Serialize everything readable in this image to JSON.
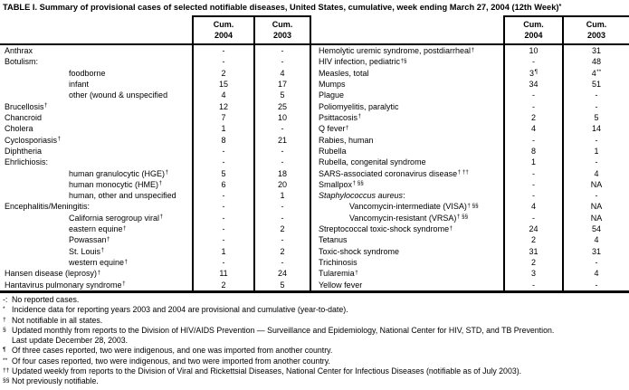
{
  "title": {
    "text": "TABLE I. Summary of provisional cases of selected notifiable diseases, United States, cumulative, week ending March 27, 2004 (12th Week)",
    "marker": "*"
  },
  "header": {
    "cum": "Cum.",
    "year_2004": "2004",
    "year_2003": "2003"
  },
  "left_rows": [
    {
      "label": "Anthrax",
      "v04": "-",
      "v03": "-"
    },
    {
      "label": "Botulism:",
      "v04": "-",
      "v03": "-"
    },
    {
      "label": "foodborne",
      "indent": 1,
      "v04": "2",
      "v03": "4"
    },
    {
      "label": "infant",
      "indent": 1,
      "v04": "15",
      "v03": "17"
    },
    {
      "label": "other (wound & unspecified",
      "indent": 1,
      "v04": "4",
      "v03": "5"
    },
    {
      "label": "Brucellosis",
      "marker": "†",
      "v04": "12",
      "v03": "25"
    },
    {
      "label": "Chancroid",
      "v04": "7",
      "v03": "10"
    },
    {
      "label": "Cholera",
      "v04": "1",
      "v03": "-"
    },
    {
      "label": "Cyclosporiasis",
      "marker": "†",
      "v04": "8",
      "v03": "21"
    },
    {
      "label": "Diphtheria",
      "v04": "-",
      "v03": "-"
    },
    {
      "label": "Ehrlichiosis:",
      "v04": "-",
      "v03": "-"
    },
    {
      "label": "human granulocytic (HGE)",
      "marker": "†",
      "indent": 1,
      "v04": "5",
      "v03": "18"
    },
    {
      "label": "human monocytic (HME)",
      "marker": "†",
      "indent": 1,
      "v04": "6",
      "v03": "20"
    },
    {
      "label": "human, other and unspecified",
      "indent": 1,
      "v04": "-",
      "v03": "1"
    },
    {
      "label": "Encephalitis/Meningitis:",
      "v04": "-",
      "v03": "-"
    },
    {
      "label": "California serogroup viral",
      "marker": "†",
      "indent": 1,
      "v04": "-",
      "v03": "-"
    },
    {
      "label": "eastern equine",
      "marker": "†",
      "indent": 1,
      "v04": "-",
      "v03": "2"
    },
    {
      "label": "Powassan",
      "marker": "†",
      "indent": 1,
      "v04": "-",
      "v03": "-"
    },
    {
      "label": "St. Louis",
      "marker": "†",
      "indent": 1,
      "v04": "1",
      "v03": "2"
    },
    {
      "label": "western equine",
      "marker": "†",
      "indent": 1,
      "v04": "-",
      "v03": "-"
    },
    {
      "label": "Hansen disease (leprosy)",
      "marker": "†",
      "v04": "11",
      "v03": "24"
    },
    {
      "label": "Hantavirus pulmonary syndrome",
      "marker": "†",
      "v04": "2",
      "v03": "5"
    }
  ],
  "right_rows": [
    {
      "label": "Hemolytic uremic syndrome, postdiarrheal",
      "marker": "†",
      "v04": "10",
      "v03": "31"
    },
    {
      "label": "HIV infection, pediatric",
      "marker": "†§",
      "v04": "-",
      "v03": "48"
    },
    {
      "label": "Measles, total",
      "v04": "3",
      "m04": "¶",
      "v03": "4",
      "m03": "**"
    },
    {
      "label": "Mumps",
      "v04": "34",
      "v03": "51"
    },
    {
      "label": "Plague",
      "v04": "-",
      "v03": "-"
    },
    {
      "label": "Poliomyelitis, paralytic",
      "v04": "-",
      "v03": "-"
    },
    {
      "label": "Psittacosis",
      "marker": "†",
      "v04": "2",
      "v03": "5"
    },
    {
      "label": "Q fever",
      "marker": "†",
      "v04": "4",
      "v03": "14"
    },
    {
      "label": "Rabies, human",
      "v04": "-",
      "v03": "-"
    },
    {
      "label": "Rubella",
      "v04": "8",
      "v03": "1"
    },
    {
      "label": "Rubella, congenital syndrome",
      "v04": "1",
      "v03": "-"
    },
    {
      "label": "SARS-associated coronavirus disease",
      "marker": "† ††",
      "v04": "-",
      "v03": "4"
    },
    {
      "label": "Smallpox",
      "marker": "† §§",
      "v04": "-",
      "v03": "NA"
    },
    {
      "italic": "Staphylococcus aureus",
      "label": ":",
      "v04": "-",
      "v03": "-"
    },
    {
      "label": "Vancomycin-intermediate (VISA)",
      "marker": "† §§",
      "indent": 1,
      "v04": "4",
      "v03": "NA"
    },
    {
      "label": "Vancomycin-resistant (VRSA)",
      "marker": "† §§",
      "indent": 1,
      "v04": "-",
      "v03": "NA"
    },
    {
      "italic": "S",
      "label": "treptococcal toxic-shock syndrome",
      "marker": "†",
      "v04": "24",
      "v03": "54"
    },
    {
      "label": "Tetanus",
      "v04": "2",
      "v03": "4"
    },
    {
      "label": "Toxic-shock syndrome",
      "v04": "31",
      "v03": "31"
    },
    {
      "label": "Trichinosis",
      "v04": "2",
      "v03": "-"
    },
    {
      "label": "Tularemia",
      "marker": "†",
      "v04": "3",
      "v03": "4"
    },
    {
      "label": "Yellow fever",
      "v04": "-",
      "v03": "-"
    }
  ],
  "footnotes": [
    {
      "marker": "-:",
      "sup": false,
      "text": "No reported cases."
    },
    {
      "marker": "*",
      "sup": true,
      "text": "Incidence data for reporting years 2003 and 2004 are provisional and cumulative (year-to-date)."
    },
    {
      "marker": "†",
      "sup": true,
      "text": "Not notifiable in all states."
    },
    {
      "marker": "§",
      "sup": true,
      "text": "Updated monthly from reports to the Division of HIV/AIDS Prevention — Surveillance and Epidemiology, National Center for HIV, STD, and TB Prevention."
    },
    {
      "marker": "",
      "sup": false,
      "text": "Last update December 28, 2003."
    },
    {
      "marker": "¶",
      "sup": true,
      "text": "Of three cases reported, two were indigenous, and one was imported from another country."
    },
    {
      "marker": "**",
      "sup": true,
      "text": "Of four cases reported, two were indigenous, and two were imported from another country."
    },
    {
      "marker": "††",
      "sup": true,
      "text": "Updated weekly from reports to the Division of Viral and Rickettsial Diseases, National Center for Infectious Diseases (notifiable as of July 2003)."
    },
    {
      "marker": "§§",
      "sup": true,
      "text": "Not previously notifiable."
    }
  ]
}
